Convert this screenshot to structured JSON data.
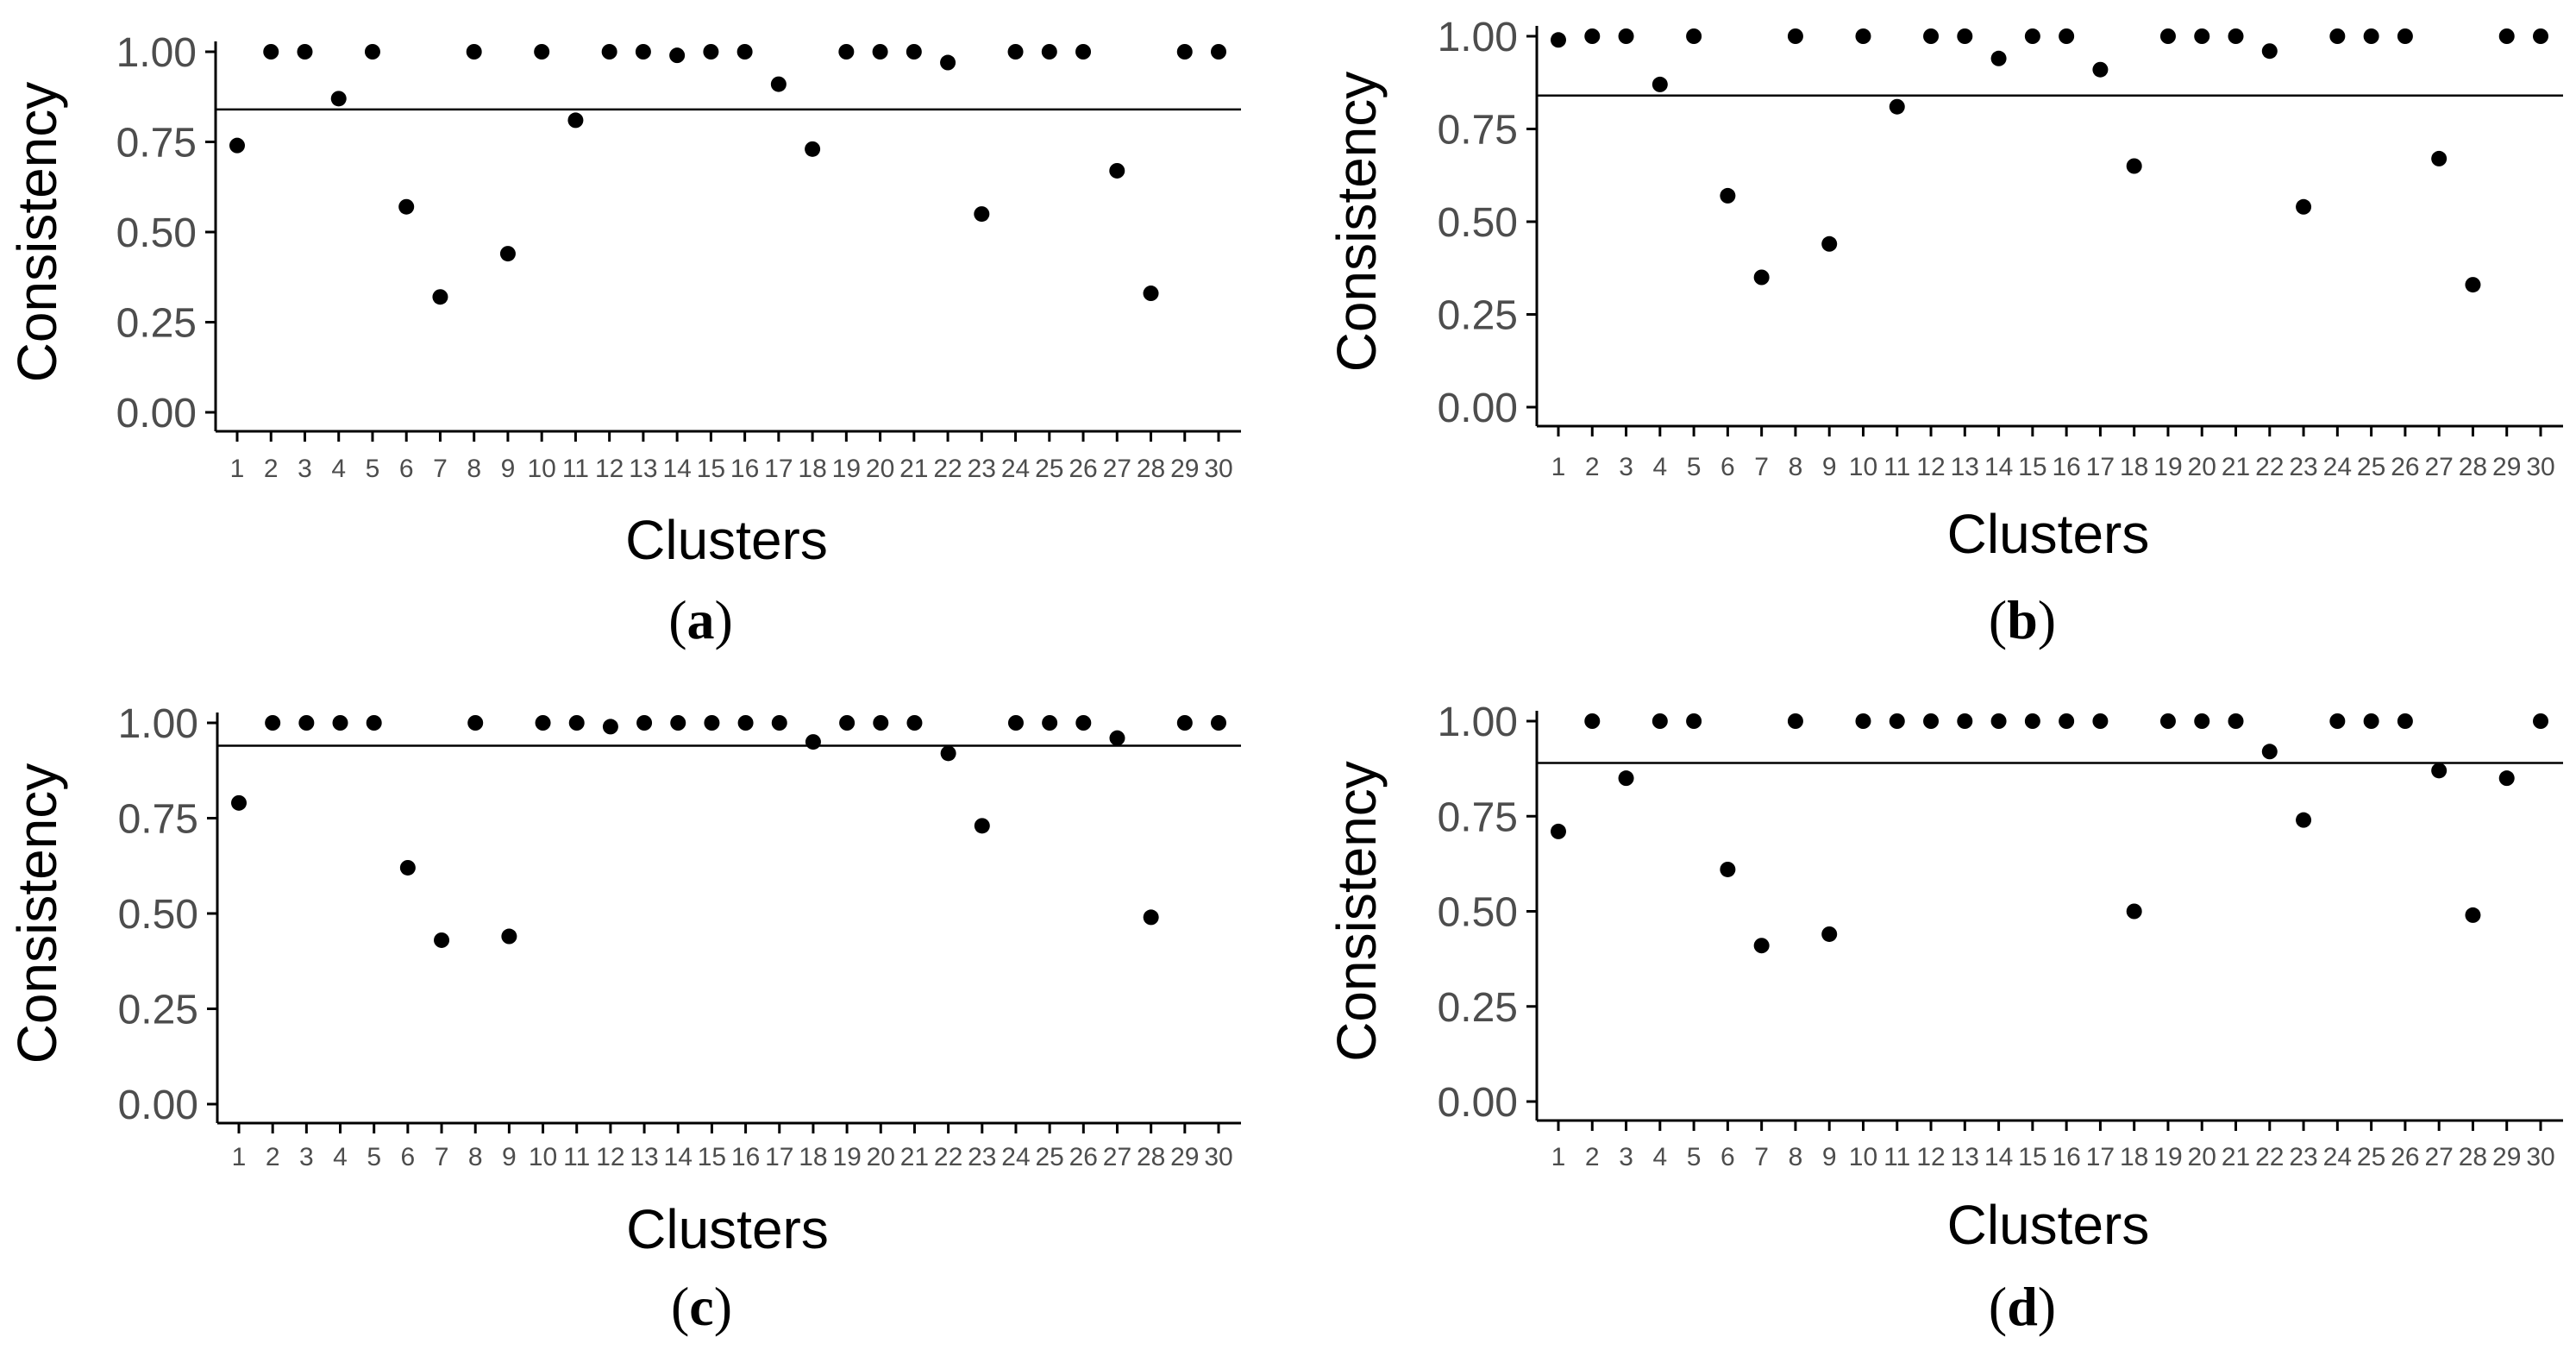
{
  "figure": {
    "panels": [
      {
        "caption_open": "(",
        "caption_letter": "a",
        "caption_close": ")"
      },
      {
        "caption_open": "(",
        "caption_letter": "b",
        "caption_close": ")"
      },
      {
        "caption_open": "(",
        "caption_letter": "c",
        "caption_close": ")"
      },
      {
        "caption_open": "(",
        "caption_letter": "d",
        "caption_close": ")"
      }
    ]
  },
  "chart_data": [
    {
      "type": "scatter",
      "xlabel": "Clusters",
      "ylabel": "Consistency",
      "ylim": [
        0,
        1
      ],
      "yticks": [
        "0.00",
        "0.25",
        "0.50",
        "0.75",
        "1.00"
      ],
      "categories": [
        "1",
        "2",
        "3",
        "4",
        "5",
        "6",
        "7",
        "8",
        "9",
        "10",
        "11",
        "12",
        "13",
        "14",
        "15",
        "16",
        "17",
        "18",
        "19",
        "20",
        "21",
        "22",
        "23",
        "24",
        "25",
        "26",
        "27",
        "28",
        "29",
        "30"
      ],
      "values": [
        0.74,
        1.0,
        1.0,
        0.87,
        1.0,
        0.57,
        0.32,
        1.0,
        0.44,
        1.0,
        0.81,
        1.0,
        1.0,
        0.99,
        1.0,
        1.0,
        0.91,
        0.73,
        1.0,
        1.0,
        1.0,
        0.97,
        0.55,
        1.0,
        1.0,
        1.0,
        0.67,
        0.33,
        1.0,
        1.0
      ],
      "threshold": 0.84
    },
    {
      "type": "scatter",
      "xlabel": "Clusters",
      "ylabel": "Consistency",
      "ylim": [
        0,
        1
      ],
      "yticks": [
        "0.00",
        "0.25",
        "0.50",
        "0.75",
        "1.00"
      ],
      "categories": [
        "1",
        "2",
        "3",
        "4",
        "5",
        "6",
        "7",
        "8",
        "9",
        "10",
        "11",
        "12",
        "13",
        "14",
        "15",
        "16",
        "17",
        "18",
        "19",
        "20",
        "21",
        "22",
        "23",
        "24",
        "25",
        "26",
        "27",
        "28",
        "29",
        "30"
      ],
      "values": [
        0.99,
        1.0,
        1.0,
        0.87,
        1.0,
        0.57,
        0.35,
        1.0,
        0.44,
        1.0,
        0.81,
        1.0,
        1.0,
        0.94,
        1.0,
        1.0,
        0.91,
        0.65,
        1.0,
        1.0,
        1.0,
        0.96,
        0.54,
        1.0,
        1.0,
        1.0,
        0.67,
        0.33,
        1.0,
        1.0
      ],
      "threshold": 0.84
    },
    {
      "type": "scatter",
      "xlabel": "Clusters",
      "ylabel": "Consistency",
      "ylim": [
        0,
        1
      ],
      "yticks": [
        "0.00",
        "0.25",
        "0.50",
        "0.75",
        "1.00"
      ],
      "categories": [
        "1",
        "2",
        "3",
        "4",
        "5",
        "6",
        "7",
        "8",
        "9",
        "10",
        "11",
        "12",
        "13",
        "14",
        "15",
        "16",
        "17",
        "18",
        "19",
        "20",
        "21",
        "22",
        "23",
        "24",
        "25",
        "26",
        "27",
        "28",
        "29",
        "30"
      ],
      "values": [
        0.79,
        1.0,
        1.0,
        1.0,
        1.0,
        0.62,
        0.43,
        1.0,
        0.44,
        1.0,
        1.0,
        0.99,
        1.0,
        1.0,
        1.0,
        1.0,
        1.0,
        0.95,
        1.0,
        1.0,
        1.0,
        0.92,
        0.73,
        1.0,
        1.0,
        1.0,
        0.96,
        0.49,
        1.0,
        1.0
      ],
      "threshold": 0.94
    },
    {
      "type": "scatter",
      "xlabel": "Clusters",
      "ylabel": "Consistency",
      "ylim": [
        0,
        1
      ],
      "yticks": [
        "0.00",
        "0.25",
        "0.50",
        "0.75",
        "1.00"
      ],
      "categories": [
        "1",
        "2",
        "3",
        "4",
        "5",
        "6",
        "7",
        "8",
        "9",
        "10",
        "11",
        "12",
        "13",
        "14",
        "15",
        "16",
        "17",
        "18",
        "19",
        "20",
        "21",
        "22",
        "23",
        "24",
        "25",
        "26",
        "27",
        "28",
        "29",
        "30"
      ],
      "values": [
        0.71,
        1.0,
        0.85,
        1.0,
        1.0,
        0.61,
        0.41,
        1.0,
        0.44,
        1.0,
        1.0,
        1.0,
        1.0,
        1.0,
        1.0,
        1.0,
        1.0,
        0.5,
        1.0,
        1.0,
        1.0,
        0.92,
        0.74,
        1.0,
        1.0,
        1.0,
        0.87,
        0.49,
        0.85,
        1.0
      ],
      "threshold": 0.89
    }
  ]
}
